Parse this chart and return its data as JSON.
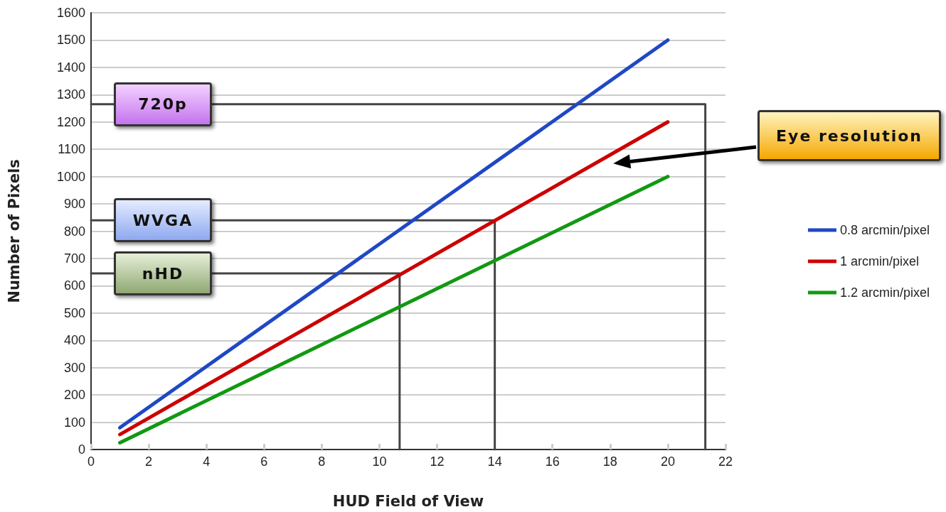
{
  "chart_data": {
    "type": "line",
    "xlabel": "HUD Field of View",
    "ylabel": "Number of Pixels",
    "xlim": [
      0,
      22
    ],
    "xticks": [
      0,
      2,
      4,
      6,
      8,
      10,
      12,
      14,
      16,
      18,
      20,
      22
    ],
    "ylim": [
      0,
      1600
    ],
    "yticks": [
      0,
      100,
      200,
      300,
      400,
      500,
      600,
      700,
      800,
      900,
      1000,
      1100,
      1200,
      1300,
      1400,
      1500,
      1600
    ],
    "grid": "y",
    "legend": "right",
    "marker": "none",
    "line_style": "solid",
    "series": [
      {
        "name": "0.8 arcmin/pixel",
        "color": "#1f48c4",
        "x": [
          1,
          20
        ],
        "values": [
          80,
          1500
        ]
      },
      {
        "name": "1 arcmin/pixel",
        "color": "#cc0000",
        "x": [
          1,
          20
        ],
        "values": [
          55,
          1200
        ]
      },
      {
        "name": "1.2 arcmin/pixel",
        "color": "#119911",
        "x": [
          1,
          20
        ],
        "values": [
          25,
          1000
        ]
      },
      {
        "color": "#444444",
        "x": [
          0,
          21.3,
          21.3
        ],
        "values": [
          1265,
          1265,
          0
        ]
      },
      {
        "color": "#444444",
        "x": [
          0,
          14,
          14
        ],
        "values": [
          840,
          840,
          0
        ]
      },
      {
        "color": "#444444",
        "x": [
          0,
          10.7,
          10.7
        ],
        "values": [
          645,
          645,
          0
        ]
      }
    ],
    "annotations": [
      "720p",
      "WVGA",
      "nHD",
      "Eye resolution"
    ]
  }
}
